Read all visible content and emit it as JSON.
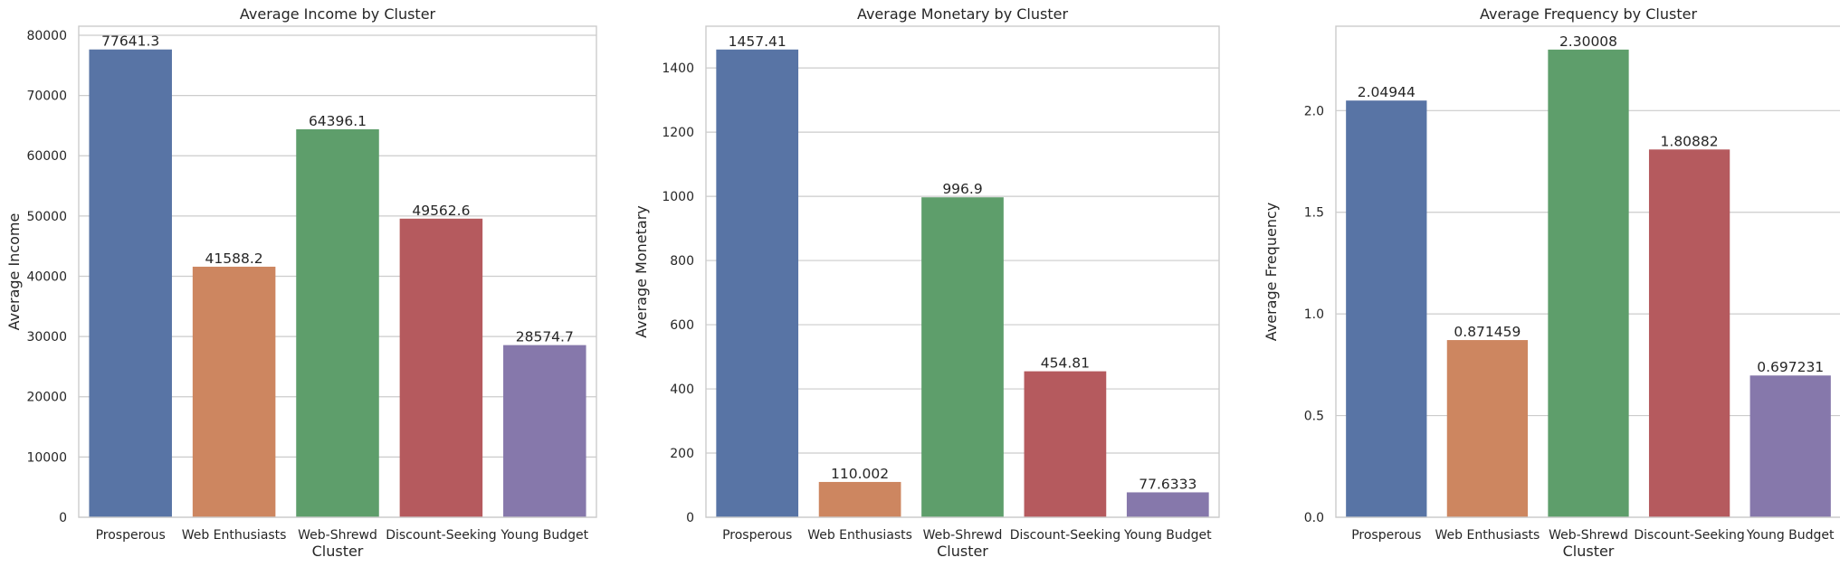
{
  "chart_data": [
    {
      "type": "bar",
      "title": "Average Income by Cluster",
      "xlabel": "Cluster",
      "ylabel": "Average Income",
      "categories": [
        "Prosperous",
        "Web Enthusiasts",
        "Web-Shrewd",
        "Discount-Seeking",
        "Young Budget"
      ],
      "values": [
        77641.3,
        41588.2,
        64396.1,
        49562.6,
        28574.7
      ],
      "value_labels": [
        "77641.3",
        "41588.2",
        "64396.1",
        "49562.6",
        "28574.7"
      ],
      "ylim": [
        0,
        81500
      ],
      "yticks": [
        0,
        10000,
        20000,
        30000,
        40000,
        50000,
        60000,
        70000,
        80000
      ],
      "ytick_labels": [
        "0",
        "10000",
        "20000",
        "30000",
        "40000",
        "50000",
        "60000",
        "70000",
        "80000"
      ],
      "grid": true,
      "legend": "none"
    },
    {
      "type": "bar",
      "title": "Average Monetary by Cluster",
      "xlabel": "Cluster",
      "ylabel": "Average Monetary",
      "categories": [
        "Prosperous",
        "Web Enthusiasts",
        "Web-Shrewd",
        "Discount-Seeking",
        "Young Budget"
      ],
      "values": [
        1457.41,
        110.002,
        996.9,
        454.81,
        77.6333
      ],
      "value_labels": [
        "1457.41",
        "110.002",
        "996.9",
        "454.81",
        "77.6333"
      ],
      "ylim": [
        0,
        1530
      ],
      "yticks": [
        0,
        200,
        400,
        600,
        800,
        1000,
        1200,
        1400
      ],
      "ytick_labels": [
        "0",
        "200",
        "400",
        "600",
        "800",
        "1000",
        "1200",
        "1400"
      ],
      "grid": true,
      "legend": "none"
    },
    {
      "type": "bar",
      "title": "Average Frequency by Cluster",
      "xlabel": "Cluster",
      "ylabel": "Average Frequency",
      "categories": [
        "Prosperous",
        "Web Enthusiasts",
        "Web-Shrewd",
        "Discount-Seeking",
        "Young Budget"
      ],
      "values": [
        2.04944,
        0.871459,
        2.30008,
        1.80882,
        0.697231
      ],
      "value_labels": [
        "2.04944",
        "0.871459",
        "2.30008",
        "1.80882",
        "0.697231"
      ],
      "ylim": [
        0,
        2.415
      ],
      "yticks": [
        0,
        0.5,
        1.0,
        1.5,
        2.0
      ],
      "ytick_labels": [
        "0.0",
        "0.5",
        "1.0",
        "1.5",
        "2.0"
      ],
      "grid": true,
      "legend": "none"
    }
  ],
  "colors": {
    "bars": [
      "#5874a5",
      "#cd8660",
      "#5e9e6b",
      "#b55a5e",
      "#8678ab"
    ],
    "grid": "#cccccc",
    "text": "#262626"
  }
}
